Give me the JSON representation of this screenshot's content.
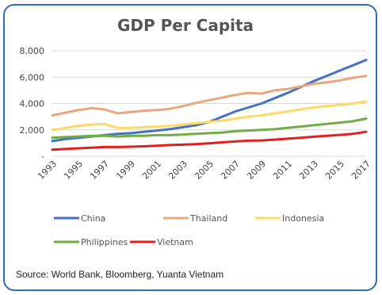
{
  "chart_data": {
    "type": "line",
    "title": "GDP Per Capita",
    "xlabel": "",
    "ylabel": "",
    "x": [
      1993,
      1994,
      1995,
      1996,
      1997,
      1998,
      1999,
      2000,
      2001,
      2002,
      2003,
      2004,
      2005,
      2006,
      2007,
      2008,
      2009,
      2010,
      2011,
      2012,
      2013,
      2014,
      2015,
      2016,
      2017
    ],
    "x_tick_labels": [
      "1993",
      "1995",
      "1997",
      "1999",
      "2001",
      "2003",
      "2005",
      "2007",
      "2009",
      "2011",
      "2013",
      "2015",
      "2017"
    ],
    "y_tick_labels": [
      "-",
      "2,000",
      "4,000",
      "6,000",
      "8,000"
    ],
    "y_tick_values": [
      0,
      2000,
      4000,
      6000,
      8000
    ],
    "ylim": [
      0,
      8000
    ],
    "grid": true,
    "legend_position": "bottom",
    "series": [
      {
        "name": "China",
        "color": "#4472c4",
        "values": [
          1150,
          1300,
          1400,
          1500,
          1600,
          1700,
          1750,
          1850,
          1950,
          2050,
          2200,
          2350,
          2600,
          3000,
          3400,
          3700,
          4000,
          4400,
          4800,
          5250,
          5700,
          6100,
          6500,
          6900,
          7300
        ]
      },
      {
        "name": "Thailand",
        "color": "#e8a87c",
        "values": [
          3100,
          3300,
          3500,
          3650,
          3550,
          3250,
          3350,
          3450,
          3500,
          3600,
          3800,
          4050,
          4250,
          4450,
          4650,
          4800,
          4750,
          5000,
          5100,
          5300,
          5500,
          5600,
          5750,
          5950,
          6100
        ]
      },
      {
        "name": "Indonesia",
        "color": "#ffd966",
        "values": [
          2000,
          2150,
          2300,
          2400,
          2450,
          2150,
          2150,
          2200,
          2250,
          2300,
          2400,
          2500,
          2600,
          2700,
          2850,
          3000,
          3100,
          3250,
          3400,
          3550,
          3700,
          3800,
          3900,
          4000,
          4150
        ]
      },
      {
        "name": "Philippines",
        "color": "#70ad47",
        "values": [
          1400,
          1450,
          1500,
          1550,
          1550,
          1500,
          1550,
          1550,
          1600,
          1600,
          1650,
          1700,
          1750,
          1800,
          1900,
          1950,
          2000,
          2050,
          2150,
          2250,
          2350,
          2450,
          2550,
          2650,
          2850
        ]
      },
      {
        "name": "Vietnam",
        "color": "#e02020",
        "values": [
          500,
          550,
          600,
          650,
          700,
          700,
          720,
          750,
          800,
          850,
          880,
          920,
          980,
          1050,
          1120,
          1180,
          1200,
          1260,
          1330,
          1400,
          1480,
          1550,
          1620,
          1700,
          1850
        ]
      }
    ]
  },
  "source": "Source: World Bank, Bloomberg, Yuanta Vietnam"
}
